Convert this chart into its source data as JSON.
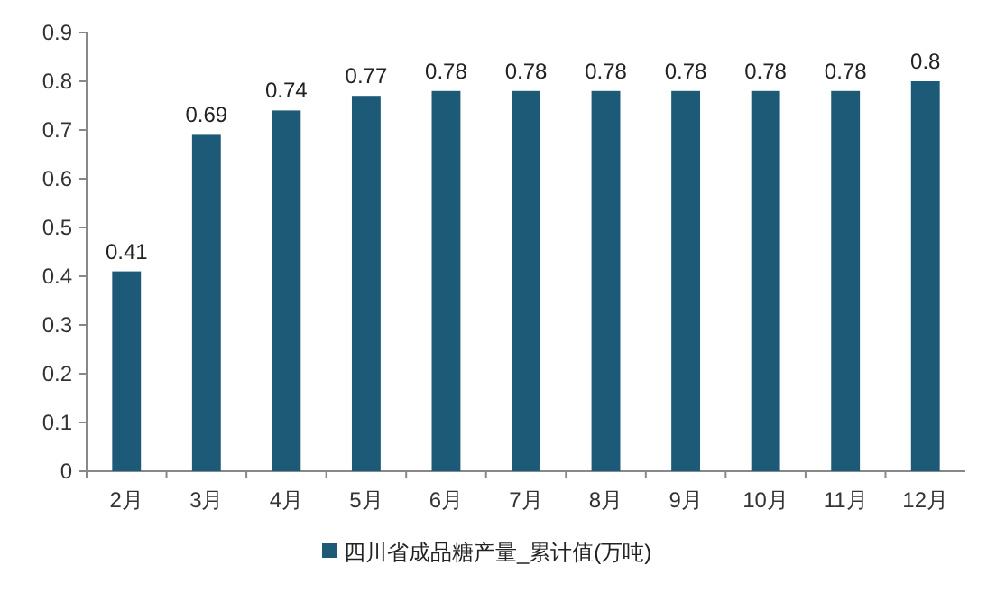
{
  "chart_data": {
    "type": "bar",
    "categories": [
      "2月",
      "3月",
      "4月",
      "5月",
      "6月",
      "7月",
      "8月",
      "9月",
      "10月",
      "11月",
      "12月"
    ],
    "series": [
      {
        "name": "四川省成品糖产量_累计值(万吨)",
        "color": "#1d5a78",
        "values": [
          0.41,
          0.69,
          0.74,
          0.77,
          0.78,
          0.78,
          0.78,
          0.78,
          0.78,
          0.78,
          0.8
        ]
      }
    ],
    "ylim": [
      0,
      0.9
    ],
    "yticks": [
      0,
      0.1,
      0.2,
      0.3,
      0.4,
      0.5,
      0.6,
      0.7,
      0.8,
      0.9
    ],
    "data_labels": true,
    "grid": false,
    "legend": "bottom"
  }
}
